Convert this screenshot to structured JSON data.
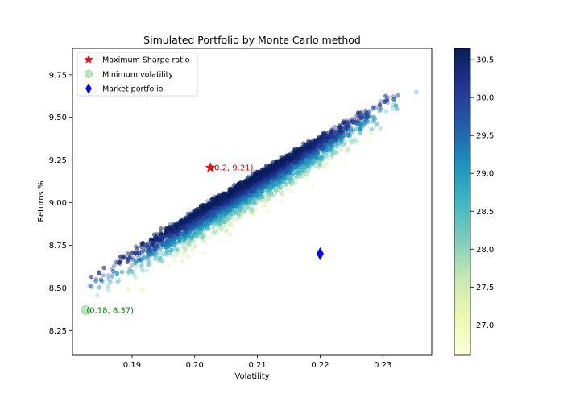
{
  "chart_data": {
    "type": "scatter",
    "title": "Simulated Portfolio by Monte Carlo method",
    "xlabel": "Volatility",
    "ylabel": "Returns %",
    "xlim": [
      0.1805,
      0.2378
    ],
    "ylim": [
      8.105,
      9.905
    ],
    "x_ticks": [
      0.19,
      0.2,
      0.21,
      0.22,
      0.23
    ],
    "x_tick_labels": [
      "0.19",
      "0.20",
      "0.21",
      "0.22",
      "0.23"
    ],
    "y_ticks": [
      8.25,
      8.5,
      8.75,
      9.0,
      9.25,
      9.5,
      9.75
    ],
    "y_tick_labels": [
      "8.25",
      "8.50",
      "8.75",
      "9.00",
      "9.25",
      "9.50",
      "9.75"
    ],
    "grid": false,
    "legend_position": "top-left",
    "colormap": "YlGnBu",
    "colorbar": {
      "range": [
        26.6,
        30.65
      ],
      "ticks": [
        27.0,
        27.5,
        28.0,
        28.5,
        29.0,
        29.5,
        30.0,
        30.5
      ],
      "tick_labels": [
        "27.0",
        "27.5",
        "28.0",
        "28.5",
        "29.0",
        "29.5",
        "30.0",
        "30.5"
      ]
    },
    "simulated_points": {
      "alpha": 0.35,
      "color_by": "sharpe_ratio",
      "ridge_line": {
        "x": [
          0.184,
          0.233
        ],
        "y": [
          8.55,
          9.63
        ]
      },
      "spread_sd": 0.07,
      "x_range": [
        0.183,
        0.2355
      ]
    },
    "series": [
      {
        "name": "Maximum Sharpe ratio",
        "marker": "star",
        "color": "#ee1111",
        "x": 0.2025,
        "y": 9.205,
        "annotation": "(0.2, 9.21)",
        "annotation_color": "#dd0000"
      },
      {
        "name": "Minimum volatility",
        "marker": "circle",
        "color": "#bbe4bc",
        "x": 0.1826,
        "y": 8.37,
        "annotation": "(0.18, 8.37)",
        "annotation_color": "#008000"
      },
      {
        "name": "Market portfolio",
        "marker": "diamond",
        "color": "#0000ff",
        "x": 0.22,
        "y": 8.7
      }
    ]
  }
}
